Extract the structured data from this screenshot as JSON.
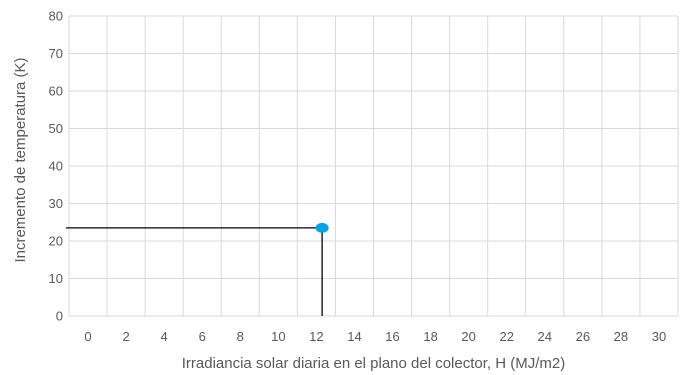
{
  "chart_data": {
    "type": "scatter",
    "title": "",
    "xlabel": "Irradiancia solar diaria en el plano del colector, H (MJ/m2)",
    "ylabel": "Incremento de temperatura (K)",
    "xlim": [
      -1,
      31
    ],
    "ylim": [
      0,
      80
    ],
    "x_ticks": [
      0,
      2,
      4,
      6,
      8,
      10,
      12,
      14,
      16,
      18,
      20,
      22,
      24,
      26,
      28,
      30
    ],
    "y_ticks": [
      0,
      10,
      20,
      30,
      40,
      50,
      60,
      70,
      80
    ],
    "grid": true,
    "legend": "none",
    "series": [
      {
        "x": [
          12.3
        ],
        "y": [
          23.5
        ],
        "color": "#00a2e8"
      }
    ],
    "reference_lines": {
      "point": {
        "x": 12.3,
        "y": 23.5
      },
      "color": "#000000"
    }
  }
}
